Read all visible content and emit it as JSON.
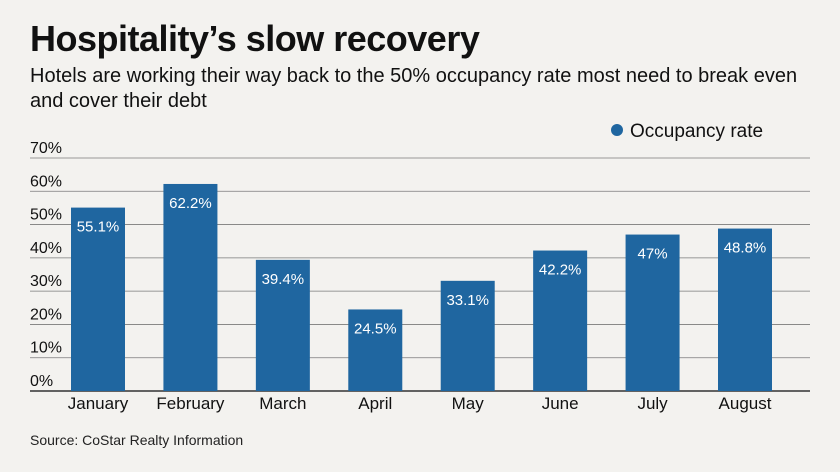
{
  "header": {
    "title": "Hospitality’s slow recovery",
    "subtitle": "Hotels are working their way back to the 50% occupancy rate most need to break even and cover their debt"
  },
  "footer": {
    "source": "Source: CoStar Realty Information"
  },
  "colors": {
    "bar": "#1f66a0",
    "grid": "#7a7a7a",
    "background": "#f3f2ef",
    "label": "#ffffff"
  },
  "chart_data": {
    "type": "bar",
    "title": "Hospitality’s slow recovery",
    "categories": [
      "January",
      "February",
      "March",
      "April",
      "May",
      "June",
      "July",
      "August"
    ],
    "series": [
      {
        "name": "Occupancy rate",
        "values": [
          55.1,
          62.2,
          39.4,
          24.5,
          33.1,
          42.2,
          47,
          48.8
        ],
        "labels": [
          "55.1%",
          "62.2%",
          "39.4%",
          "24.5%",
          "33.1%",
          "42.2%",
          "47%",
          "48.8%"
        ]
      }
    ],
    "ylim": [
      0,
      70
    ],
    "yticks": [
      0,
      10,
      20,
      30,
      40,
      50,
      60,
      70
    ],
    "ytick_labels": [
      "0%",
      "10%",
      "20%",
      "30%",
      "40%",
      "50%",
      "60%",
      "70%"
    ],
    "xlabel": "",
    "ylabel": "",
    "grid": true,
    "legend": "top-right"
  }
}
